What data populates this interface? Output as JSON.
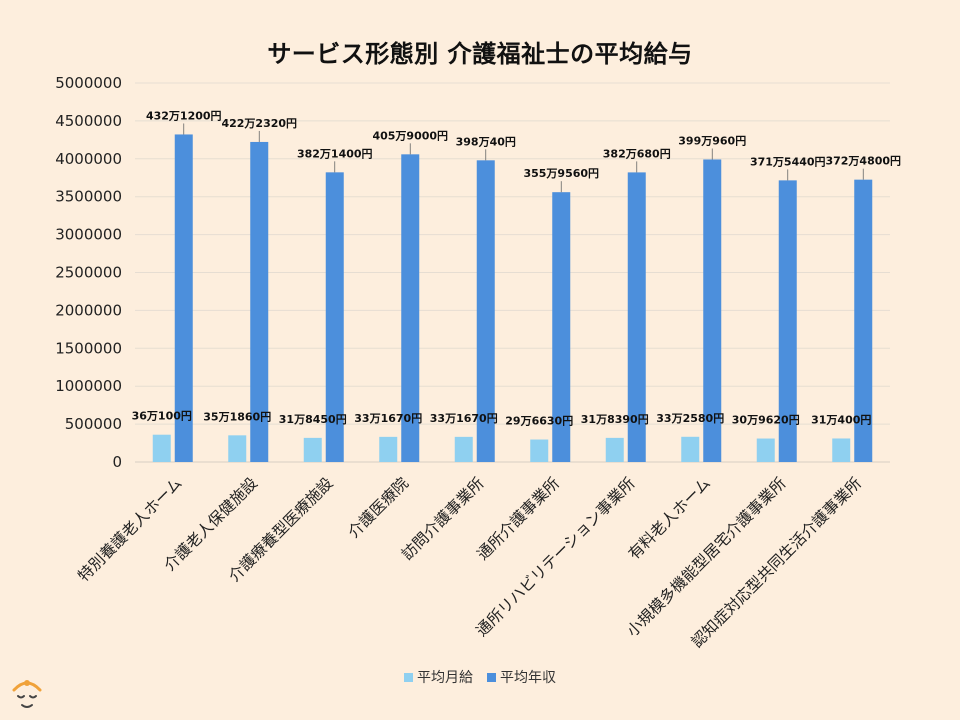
{
  "colors": {
    "monthly": "#8fd0f0",
    "annual": "#4c8fdc",
    "grid": "#e6ddd2",
    "background": "#fdeedd"
  },
  "chart_data": {
    "type": "bar",
    "title": "サービス形態別  介護福祉士の平均給与",
    "xlabel": "",
    "ylabel": "",
    "ylim": [
      0,
      5000000
    ],
    "yticks": [
      "0",
      "500000",
      "1000000",
      "1500000",
      "2000000",
      "2500000",
      "3000000",
      "3500000",
      "4000000",
      "4500000",
      "5000000"
    ],
    "grid": true,
    "legend_position": "bottom",
    "categories": [
      "特別養護老人ホーム",
      "介護老人保健施設",
      "介護療養型医療施設",
      "介護医療院",
      "訪問介護事業所",
      "通所介護事業所",
      "通所リハビリテーション事業所",
      "有料老人ホーム",
      "小規模多機能型居宅介護事業所",
      "認知症対応型共同生活介護事業所"
    ],
    "series": [
      {
        "name": "平均月給",
        "color": "#8fd0f0",
        "values": [
          360100,
          351860,
          318450,
          331670,
          331670,
          296630,
          318390,
          332580,
          309620,
          310400
        ],
        "labels": [
          "36万100円",
          "35万1860円",
          "31万8450円",
          "33万1670円",
          "33万1670円",
          "29万6630円",
          "31万8390円",
          "33万2580円",
          "30万9620円",
          "31万400円"
        ]
      },
      {
        "name": "平均年収",
        "color": "#4c8fdc",
        "values": [
          4321200,
          4222320,
          3821400,
          4059000,
          3980040,
          3559560,
          3820680,
          3990960,
          3715440,
          3724800
        ],
        "labels": [
          "432万1200円",
          "422万2320円",
          "382万1400円",
          "405万9000円",
          "398万40円",
          "355万9560円",
          "382万680円",
          "399万960円",
          "371万5440円",
          "372万4800円"
        ]
      }
    ]
  }
}
